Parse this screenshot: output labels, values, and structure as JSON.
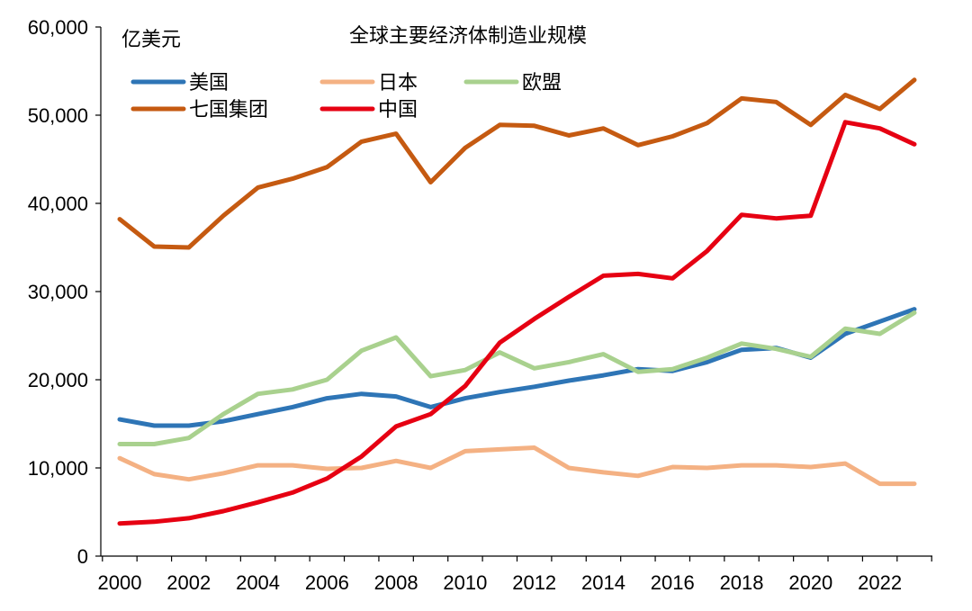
{
  "chart_data": {
    "type": "line",
    "title": "全球主要经济体制造业规模",
    "unit_label": "亿美元",
    "x": [
      2000,
      2001,
      2002,
      2003,
      2004,
      2005,
      2006,
      2007,
      2008,
      2009,
      2010,
      2011,
      2012,
      2013,
      2014,
      2015,
      2016,
      2017,
      2018,
      2019,
      2020,
      2021,
      2022,
      2023
    ],
    "xticks": [
      "2000",
      "2002",
      "2004",
      "2006",
      "2008",
      "2010",
      "2012",
      "2014",
      "2016",
      "2018",
      "2020",
      "2022"
    ],
    "yticks": [
      "0",
      "10,000",
      "20,000",
      "30,000",
      "40,000",
      "50,000",
      "60,000"
    ],
    "ylim": [
      0,
      60000
    ],
    "xlabel": "",
    "ylabel": "",
    "grid": false,
    "legend_position": "top-left",
    "series": [
      {
        "name": "美国",
        "color": "#2e75b6",
        "values": [
          15500,
          14800,
          14800,
          15300,
          16100,
          16900,
          17900,
          18400,
          18100,
          16900,
          17900,
          18600,
          19200,
          19900,
          20500,
          21200,
          21000,
          22000,
          23400,
          23600,
          22500,
          25200,
          26600,
          28000
        ]
      },
      {
        "name": "日本",
        "color": "#f4b183",
        "values": [
          11100,
          9300,
          8700,
          9400,
          10300,
          10300,
          9900,
          10000,
          10800,
          10000,
          11900,
          12100,
          12300,
          10000,
          9500,
          9100,
          10100,
          10000,
          10300,
          10300,
          10100,
          10500,
          8200,
          8200
        ]
      },
      {
        "name": "欧盟",
        "color": "#a9d18e",
        "values": [
          12700,
          12700,
          13400,
          16100,
          18400,
          18900,
          20000,
          23300,
          24800,
          20400,
          21100,
          23100,
          21300,
          22000,
          22900,
          20900,
          21200,
          22500,
          24100,
          23500,
          22600,
          25800,
          25200,
          27600
        ]
      },
      {
        "name": "七国集团",
        "color": "#c55a11",
        "values": [
          38200,
          35100,
          35000,
          38600,
          41800,
          42800,
          44100,
          47000,
          47900,
          42400,
          46300,
          48900,
          48800,
          47700,
          48500,
          46600,
          47600,
          49100,
          51900,
          51500,
          48900,
          52300,
          50700,
          54000
        ]
      },
      {
        "name": "中国",
        "color": "#e60012",
        "values": [
          3700,
          3900,
          4300,
          5100,
          6100,
          7200,
          8800,
          11300,
          14700,
          16100,
          19300,
          24200,
          26900,
          29400,
          31800,
          32000,
          31500,
          34600,
          38700,
          38300,
          38600,
          49200,
          48500,
          46700
        ]
      }
    ]
  }
}
